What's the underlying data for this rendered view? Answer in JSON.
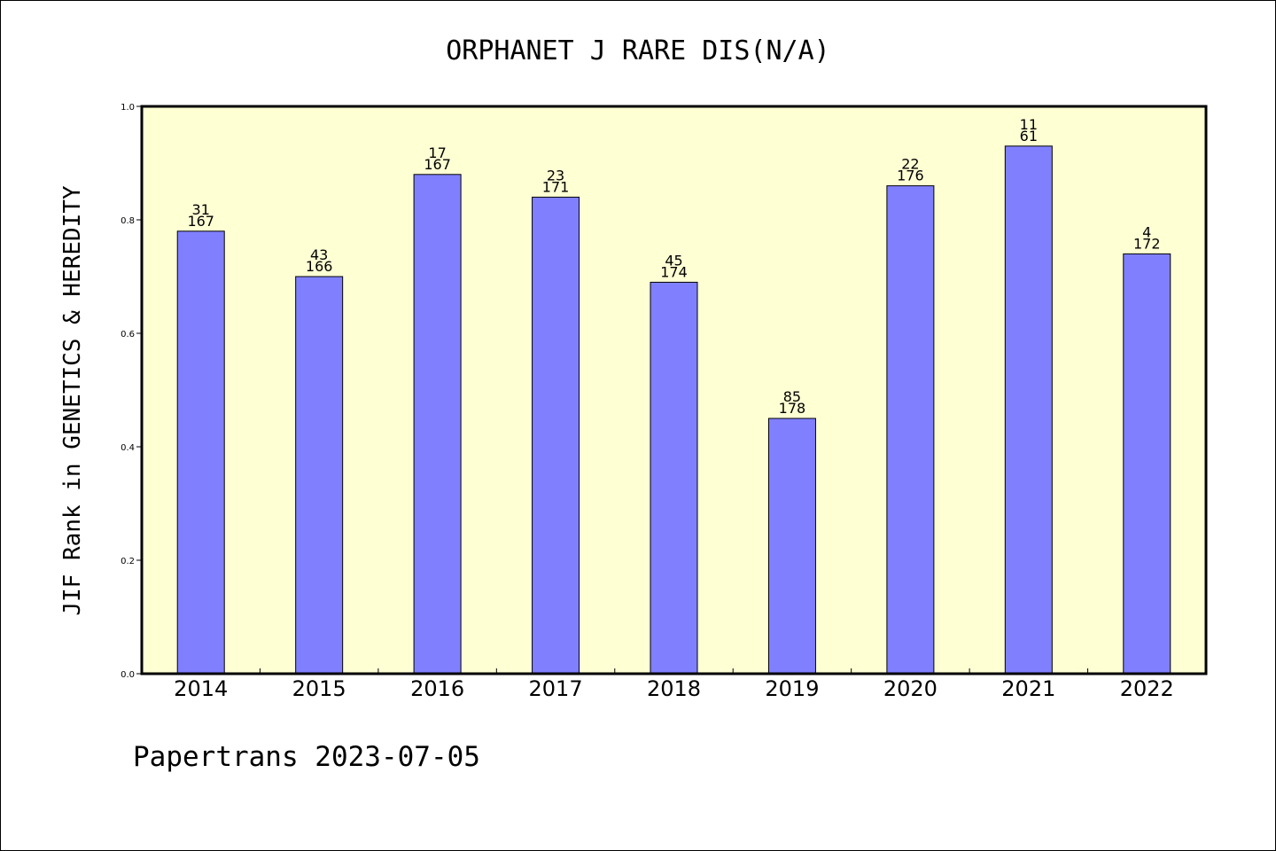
{
  "chart_data": {
    "type": "bar",
    "title": "ORPHANET J RARE DIS(N/A)",
    "ylabel": "JIF Rank in GENETICS & HEREDITY",
    "xlabel": "",
    "categories": [
      "2014",
      "2015",
      "2016",
      "2017",
      "2018",
      "2019",
      "2020",
      "2021",
      "2022"
    ],
    "values": [
      0.78,
      0.7,
      0.88,
      0.84,
      0.69,
      0.45,
      0.86,
      0.93,
      0.74
    ],
    "rank": [
      "31",
      "43",
      "17",
      "23",
      "45",
      "85",
      "22",
      "11",
      "4"
    ],
    "total": [
      "167",
      "166",
      "167",
      "171",
      "174",
      "178",
      "176",
      "61",
      "172"
    ],
    "ylim": [
      0,
      1.0
    ],
    "yticks": [
      "0.0",
      "0.2",
      "0.4",
      "0.6",
      "0.8",
      "1.0"
    ],
    "ytick_values": [
      0.0,
      0.2,
      0.4,
      0.6,
      0.8,
      1.0
    ],
    "grid": false,
    "colors": {
      "bar": "#8080ff",
      "plot_background": "#ffffd4",
      "axis": "#000000"
    }
  },
  "footer": {
    "text": "Papertrans 2023-07-05"
  }
}
